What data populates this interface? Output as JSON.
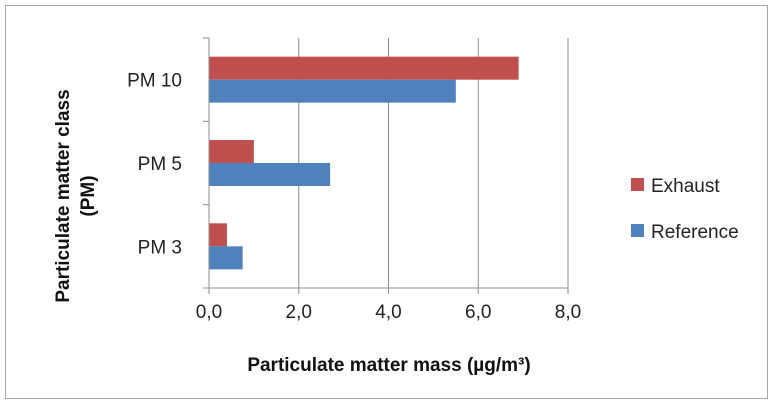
{
  "chart_data": {
    "type": "bar",
    "orientation": "horizontal",
    "categories": [
      "PM 10",
      "PM 5",
      "PM 3"
    ],
    "series": [
      {
        "name": "Exhaust",
        "color": "#c0504d",
        "values": [
          6.9,
          1.0,
          0.4
        ]
      },
      {
        "name": "Reference",
        "color": "#4f81bd",
        "values": [
          5.5,
          2.7,
          0.75
        ]
      }
    ],
    "xlabel": "Particulate matter mass (µg/m³)",
    "ylabel_lines": [
      "Particulate matter class",
      "(PM)"
    ],
    "xlim": [
      0,
      8
    ],
    "xticks": [
      "0,0",
      "2,0",
      "4,0",
      "6,0",
      "8,0"
    ],
    "grid": "vertical",
    "legend_position": "right"
  }
}
